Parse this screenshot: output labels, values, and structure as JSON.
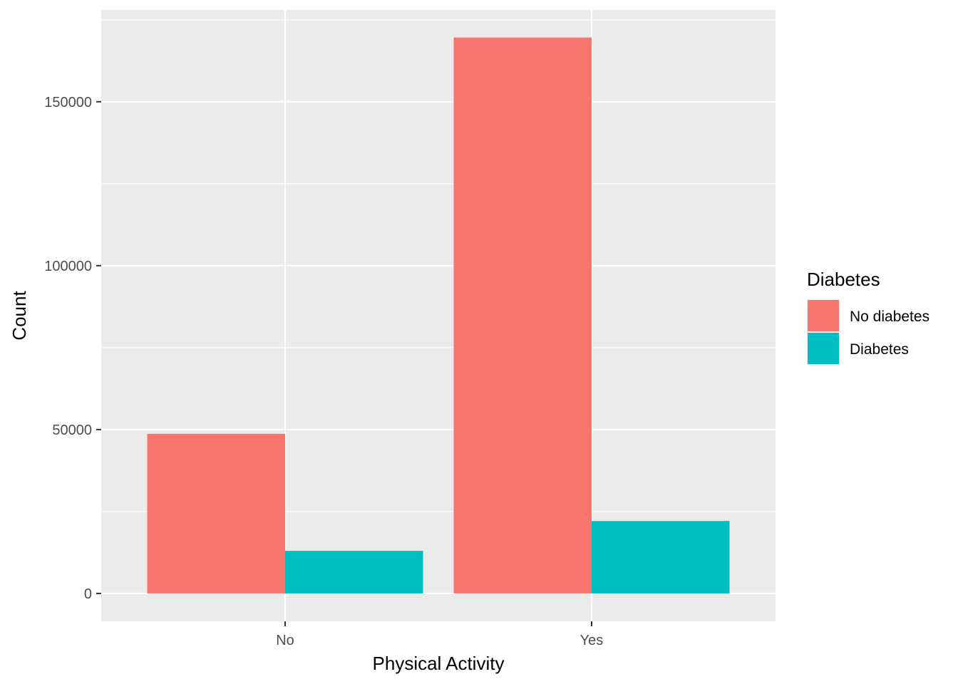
{
  "chart_data": {
    "type": "bar",
    "title": "",
    "xlabel": "Physical Activity",
    "ylabel": "Count",
    "categories": [
      "No",
      "Yes"
    ],
    "series": [
      {
        "name": "No diabetes",
        "values": [
          48700,
          169600
        ],
        "color": "#F8766D"
      },
      {
        "name": "Diabetes",
        "values": [
          13000,
          22100
        ],
        "color": "#00BFC4"
      }
    ],
    "ylim": [
      -8500,
      178000
    ],
    "yticks": [
      0,
      50000,
      100000,
      150000
    ],
    "ytick_labels": [
      "0",
      "50000",
      "100000",
      "150000"
    ],
    "grid": true,
    "panel_background": "#EBEBEB",
    "grid_color": "#FFFFFF",
    "legend": {
      "title": "Diabetes",
      "position": "right"
    }
  }
}
